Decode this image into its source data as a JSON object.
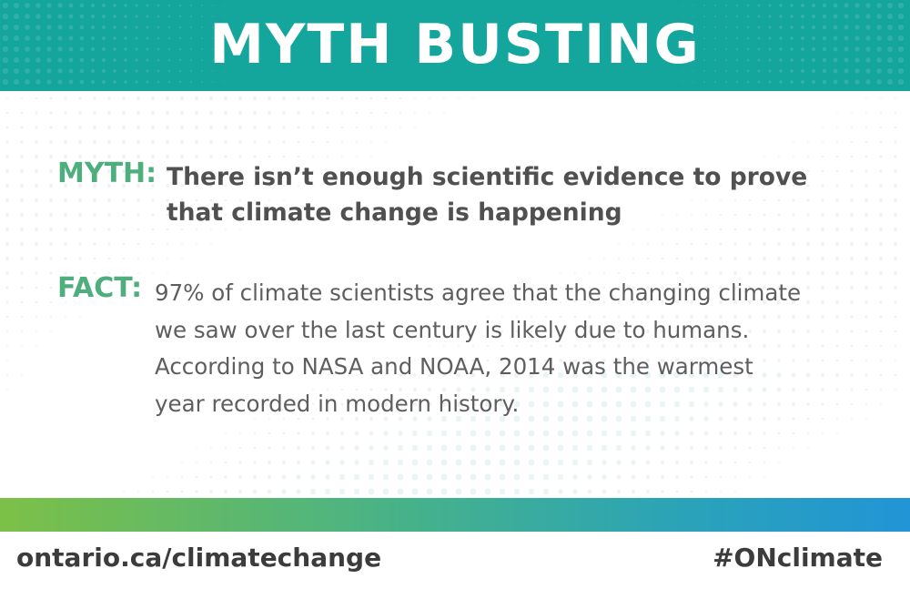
{
  "header": {
    "title": "MYTH BUSTING"
  },
  "myth": {
    "label": "MYTH:",
    "line1": "There isn’t enough scientific evidence to prove",
    "line2": "that climate change is happening"
  },
  "fact": {
    "label": "FACT:",
    "line1": "97% of climate scientists agree that the changing climate",
    "line2": "we saw over the last century is likely due to humans.",
    "line3": "According to NASA and NOAA, 2014 was the warmest",
    "line4": "year recorded in modern history."
  },
  "footer": {
    "url": "ontario.ca/climatechange",
    "hashtag": "#ONclimate"
  },
  "colors": {
    "header_teal": "#14a69c",
    "label_green": "#4fae7d",
    "gradient_start": "#7cc047",
    "gradient_end": "#2195d6",
    "text_dark": "#505050"
  }
}
